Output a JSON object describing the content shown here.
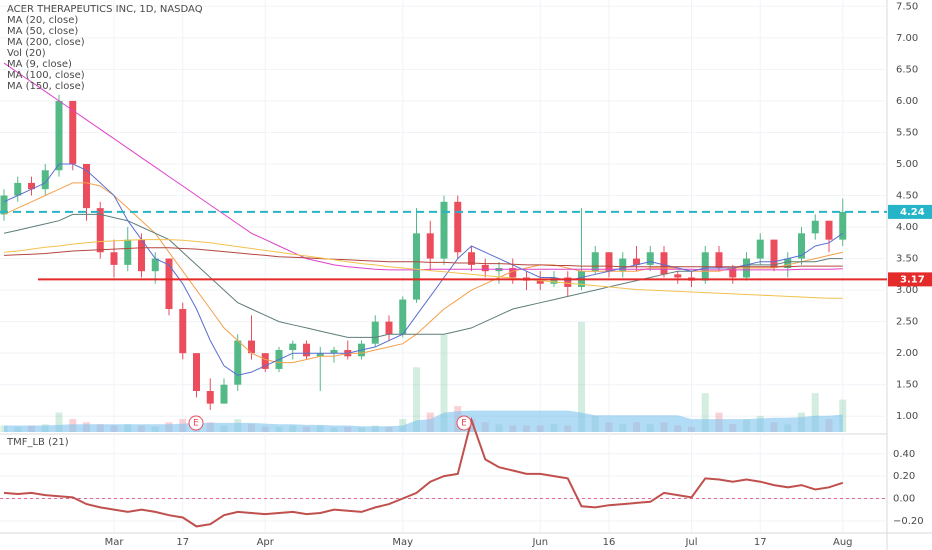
{
  "chart_data": [
    {
      "type": "candlestick",
      "title": "ACER THERAPEUTICS INC, 1D, NASDAQ",
      "categories": [
        null,
        null,
        null,
        null,
        null,
        null,
        null,
        null,
        "Mar",
        null,
        null,
        null,
        null,
        "17",
        null,
        null,
        null,
        null,
        null,
        "Apr",
        null,
        null,
        null,
        null,
        null,
        null,
        null,
        null,
        null,
        "May",
        null,
        null,
        null,
        null,
        null,
        null,
        null,
        null,
        null,
        "Jun",
        null,
        null,
        null,
        null,
        "16",
        null,
        null,
        null,
        null,
        null,
        "Jul",
        null,
        null,
        null,
        null,
        "17",
        null,
        null,
        null,
        null,
        null,
        "Aug"
      ],
      "open": [
        4.2,
        4.5,
        4.7,
        4.6,
        4.9,
        6.0,
        5.0,
        4.3,
        3.6,
        3.4,
        3.8,
        3.3,
        3.5,
        2.7,
        2.0,
        1.4,
        1.2,
        1.5,
        2.2,
        2.0,
        1.75,
        2.05,
        2.15,
        1.95,
        2.0,
        2.05,
        1.95,
        2.15,
        2.5,
        2.3,
        2.85,
        3.9,
        3.5,
        4.4,
        3.6,
        3.4,
        3.3,
        3.35,
        3.2,
        3.15,
        3.1,
        3.2,
        3.05,
        3.3,
        3.6,
        3.3,
        3.5,
        3.4,
        3.6,
        3.25,
        3.2,
        3.15,
        3.6,
        3.35,
        3.2,
        3.5,
        3.8,
        3.35,
        3.5,
        3.9,
        4.1,
        3.8
      ],
      "high": [
        4.6,
        4.8,
        4.8,
        5.0,
        6.1,
        6.0,
        5.0,
        4.4,
        3.8,
        4.0,
        3.9,
        3.6,
        3.5,
        2.8,
        2.0,
        1.6,
        1.6,
        2.3,
        2.6,
        2.0,
        2.1,
        2.2,
        2.2,
        2.1,
        2.1,
        2.2,
        2.2,
        2.6,
        2.6,
        2.9,
        4.3,
        4.1,
        4.5,
        4.5,
        3.7,
        3.5,
        3.45,
        3.5,
        3.3,
        3.3,
        3.3,
        3.3,
        4.3,
        3.7,
        3.6,
        3.6,
        3.7,
        3.7,
        3.7,
        3.3,
        3.3,
        3.7,
        3.7,
        3.4,
        3.6,
        3.9,
        3.8,
        3.6,
        4.0,
        4.2,
        4.1,
        4.45
      ],
      "low": [
        4.1,
        4.4,
        4.5,
        4.5,
        4.8,
        4.9,
        4.1,
        3.5,
        3.2,
        3.3,
        3.2,
        3.1,
        2.6,
        1.9,
        1.3,
        1.1,
        1.2,
        1.4,
        1.9,
        1.7,
        1.7,
        1.9,
        1.9,
        1.4,
        1.85,
        1.9,
        1.9,
        2.1,
        2.2,
        2.25,
        2.8,
        3.3,
        3.4,
        3.5,
        3.3,
        3.2,
        3.1,
        3.1,
        3.0,
        3.0,
        3.05,
        2.9,
        3.0,
        3.25,
        3.2,
        3.2,
        3.3,
        3.3,
        3.2,
        3.1,
        3.05,
        3.1,
        3.3,
        3.1,
        3.15,
        3.4,
        3.3,
        3.2,
        3.4,
        3.8,
        3.6,
        3.7
      ],
      "close": [
        4.5,
        4.7,
        4.6,
        4.9,
        6.0,
        5.0,
        4.3,
        3.6,
        3.4,
        3.8,
        3.3,
        3.5,
        2.7,
        2.0,
        1.4,
        1.2,
        1.5,
        2.2,
        2.0,
        1.75,
        2.05,
        2.15,
        1.95,
        2.0,
        2.05,
        1.95,
        2.15,
        2.5,
        2.3,
        2.85,
        3.9,
        3.5,
        4.4,
        3.6,
        3.4,
        3.3,
        3.35,
        3.2,
        3.15,
        3.1,
        3.2,
        3.05,
        3.3,
        3.6,
        3.3,
        3.5,
        3.4,
        3.6,
        3.25,
        3.2,
        3.15,
        3.6,
        3.35,
        3.2,
        3.5,
        3.8,
        3.35,
        3.5,
        3.9,
        4.1,
        3.8,
        4.24
      ],
      "up_color": "#53b987",
      "down_color": "#eb4d5c",
      "ylim": [
        0.75,
        7.6
      ],
      "yticks": [
        {
          "value": 1,
          "label": "1.00"
        },
        {
          "value": 1.5,
          "label": "1.50"
        },
        {
          "value": 2,
          "label": "2.00"
        },
        {
          "value": 2.5,
          "label": "2.50"
        },
        {
          "value": 3,
          "label": "3.00"
        },
        {
          "value": 3.5,
          "label": "3.50"
        },
        {
          "value": 4,
          "label": "4.00"
        },
        {
          "value": 4.5,
          "label": "4.50"
        },
        {
          "value": 5,
          "label": "5.00"
        },
        {
          "value": 5.5,
          "label": "5.50"
        },
        {
          "value": 6,
          "label": "6.00"
        },
        {
          "value": 6.5,
          "label": "6.50"
        },
        {
          "value": 7,
          "label": "7.00"
        },
        {
          "value": 7.5,
          "label": "7.50"
        }
      ],
      "grid": true,
      "earnings": [
        "E",
        "E"
      ],
      "hlines": [
        {
          "value": 4.24,
          "color": "#26b5c8",
          "style": "dashed"
        },
        {
          "value": 3.17,
          "color": "#e52a2a",
          "style": "solid"
        }
      ],
      "series": [
        {
          "name": "MA (20, close)",
          "color": "#f5a04a",
          "values": [
            4.2,
            4.3,
            4.4,
            4.5,
            4.6,
            4.7,
            4.7,
            4.65,
            4.5,
            4.3,
            4.1,
            3.9,
            3.6,
            3.3,
            3.0,
            2.7,
            2.4,
            2.2,
            2.0,
            1.9,
            1.85,
            1.85,
            1.9,
            1.95,
            1.95,
            2.0,
            2.0,
            2.05,
            2.1,
            2.15,
            2.3,
            2.5,
            2.7,
            2.85,
            3.0,
            3.1,
            3.2,
            3.3,
            3.35,
            3.4,
            3.4,
            3.35,
            3.3,
            3.3,
            3.3,
            3.3,
            3.3,
            3.35,
            3.35,
            3.35,
            3.3,
            3.3,
            3.3,
            3.35,
            3.35,
            3.35,
            3.35,
            3.4,
            3.45,
            3.5,
            3.55,
            3.6
          ]
        },
        {
          "name": "MA (50, close)",
          "color": "#5f7d7a",
          "values": [
            3.9,
            3.95,
            4.0,
            4.05,
            4.1,
            4.2,
            4.2,
            4.2,
            4.15,
            4.1,
            4.0,
            3.9,
            3.8,
            3.6,
            3.4,
            3.2,
            3.0,
            2.8,
            2.7,
            2.6,
            2.5,
            2.45,
            2.4,
            2.35,
            2.3,
            2.25,
            2.25,
            2.25,
            2.3,
            2.3,
            2.3,
            2.3,
            2.3,
            2.35,
            2.4,
            2.5,
            2.6,
            2.7,
            2.75,
            2.8,
            2.85,
            2.9,
            2.95,
            3.0,
            3.05,
            3.1,
            3.15,
            3.2,
            3.25,
            3.3,
            3.3,
            3.35,
            3.35,
            3.35,
            3.4,
            3.4,
            3.4,
            3.45,
            3.45,
            3.45,
            3.5,
            3.5
          ]
        },
        {
          "name": "MA (200, close)",
          "color": "#e040c8",
          "values": [
            6.6,
            6.45,
            6.3,
            6.15,
            6.0,
            5.85,
            5.7,
            5.55,
            5.4,
            5.25,
            5.1,
            4.95,
            4.8,
            4.65,
            4.5,
            4.35,
            4.2,
            4.05,
            3.9,
            3.8,
            3.7,
            3.6,
            3.5,
            3.45,
            3.4,
            3.37,
            3.35,
            3.33,
            3.32,
            3.32,
            3.32,
            3.33,
            3.33,
            3.33,
            3.33,
            3.33,
            3.33,
            3.33,
            3.33,
            3.33,
            3.33,
            3.33,
            3.33,
            3.33,
            3.33,
            3.33,
            3.33,
            3.33,
            3.33,
            3.33,
            3.33,
            3.32,
            3.32,
            3.32,
            3.32,
            3.32,
            3.32,
            3.32,
            3.33,
            3.33,
            3.33,
            3.34
          ]
        },
        {
          "name": "Vol (20)",
          "kind": "volume",
          "color": "#7ec3ee",
          "values": [
            0.1,
            0.08,
            0.1,
            0.12,
            0.3,
            0.2,
            0.15,
            0.12,
            0.1,
            0.12,
            0.1,
            0.08,
            0.15,
            0.2,
            0.25,
            0.15,
            0.1,
            0.2,
            0.12,
            0.08,
            0.08,
            0.1,
            0.08,
            0.1,
            0.07,
            0.08,
            0.07,
            0.1,
            0.08,
            0.2,
            1.0,
            0.3,
            1.5,
            0.4,
            0.2,
            0.15,
            0.12,
            0.1,
            0.1,
            0.1,
            0.12,
            0.1,
            1.7,
            0.25,
            0.15,
            0.12,
            0.15,
            0.12,
            0.15,
            0.1,
            0.08,
            0.6,
            0.3,
            0.12,
            0.2,
            0.25,
            0.15,
            0.12,
            0.3,
            0.6,
            0.2,
            0.5
          ],
          "ma_values": [
            0.1,
            0.1,
            0.1,
            0.1,
            0.11,
            0.12,
            0.12,
            0.12,
            0.12,
            0.12,
            0.12,
            0.12,
            0.12,
            0.13,
            0.14,
            0.14,
            0.14,
            0.14,
            0.14,
            0.13,
            0.12,
            0.12,
            0.11,
            0.11,
            0.1,
            0.1,
            0.09,
            0.09,
            0.09,
            0.1,
            0.18,
            0.2,
            0.3,
            0.32,
            0.33,
            0.33,
            0.33,
            0.33,
            0.33,
            0.33,
            0.33,
            0.33,
            0.3,
            0.26,
            0.26,
            0.26,
            0.26,
            0.26,
            0.26,
            0.26,
            0.2,
            0.2,
            0.2,
            0.2,
            0.2,
            0.21,
            0.22,
            0.22,
            0.23,
            0.25,
            0.25,
            0.27
          ]
        },
        {
          "name": "MA (9, close)",
          "color": "#5a6fd0",
          "values": [
            4.4,
            4.5,
            4.6,
            4.7,
            5.0,
            5.0,
            4.9,
            4.7,
            4.5,
            4.1,
            3.8,
            3.5,
            3.4,
            3.1,
            2.7,
            2.2,
            1.8,
            1.65,
            1.7,
            1.8,
            1.9,
            2.0,
            2.0,
            2.0,
            2.0,
            2.0,
            2.05,
            2.1,
            2.2,
            2.3,
            2.6,
            2.9,
            3.2,
            3.5,
            3.7,
            3.6,
            3.5,
            3.4,
            3.3,
            3.2,
            3.2,
            3.15,
            3.2,
            3.25,
            3.3,
            3.35,
            3.4,
            3.45,
            3.4,
            3.35,
            3.3,
            3.35,
            3.35,
            3.35,
            3.4,
            3.45,
            3.45,
            3.5,
            3.55,
            3.7,
            3.75,
            3.9
          ]
        },
        {
          "name": "MA (100, close)",
          "color": "#b5473e",
          "values": [
            3.55,
            3.56,
            3.57,
            3.58,
            3.6,
            3.62,
            3.63,
            3.64,
            3.65,
            3.66,
            3.67,
            3.67,
            3.67,
            3.66,
            3.65,
            3.63,
            3.61,
            3.59,
            3.57,
            3.55,
            3.53,
            3.52,
            3.51,
            3.5,
            3.49,
            3.48,
            3.47,
            3.46,
            3.45,
            3.45,
            3.45,
            3.44,
            3.44,
            3.43,
            3.43,
            3.42,
            3.42,
            3.41,
            3.4,
            3.4,
            3.39,
            3.39,
            3.38,
            3.38,
            3.38,
            3.37,
            3.37,
            3.37,
            3.37,
            3.37,
            3.37,
            3.37,
            3.37,
            3.37,
            3.37,
            3.37,
            3.37,
            3.37,
            3.38,
            3.38,
            3.38,
            3.38
          ]
        },
        {
          "name": "MA (150, close)",
          "color": "#f2c14e",
          "values": [
            3.6,
            3.62,
            3.65,
            3.68,
            3.7,
            3.73,
            3.75,
            3.77,
            3.78,
            3.79,
            3.8,
            3.8,
            3.8,
            3.79,
            3.77,
            3.75,
            3.72,
            3.69,
            3.66,
            3.63,
            3.6,
            3.57,
            3.54,
            3.51,
            3.48,
            3.45,
            3.42,
            3.4,
            3.37,
            3.35,
            3.33,
            3.31,
            3.29,
            3.27,
            3.25,
            3.23,
            3.21,
            3.19,
            3.17,
            3.15,
            3.13,
            3.11,
            3.09,
            3.07,
            3.05,
            3.03,
            3.01,
            3.0,
            2.99,
            2.98,
            2.97,
            2.96,
            2.95,
            2.94,
            2.93,
            2.92,
            2.91,
            2.9,
            2.89,
            2.88,
            2.87,
            2.87
          ]
        }
      ]
    },
    {
      "type": "line",
      "title": "TMF_LB (21)",
      "color": "#c0504d",
      "values": [
        0.05,
        0.04,
        0.05,
        0.03,
        0.02,
        0.01,
        -0.05,
        -0.08,
        -0.1,
        -0.12,
        -0.1,
        -0.12,
        -0.15,
        -0.17,
        -0.25,
        -0.23,
        -0.15,
        -0.12,
        -0.13,
        -0.14,
        -0.13,
        -0.12,
        -0.14,
        -0.13,
        -0.1,
        -0.11,
        -0.12,
        -0.08,
        -0.05,
        0.0,
        0.05,
        0.15,
        0.2,
        0.22,
        0.7,
        0.35,
        0.28,
        0.25,
        0.22,
        0.22,
        0.2,
        0.18,
        -0.07,
        -0.08,
        -0.06,
        -0.05,
        -0.04,
        -0.03,
        0.05,
        0.03,
        0.01,
        0.18,
        0.17,
        0.15,
        0.17,
        0.15,
        0.12,
        0.1,
        0.12,
        0.08,
        0.1,
        0.14
      ],
      "ylim": [
        -0.3,
        0.55
      ],
      "yticks": [
        {
          "value": -0.2,
          "label": "−0.20"
        },
        {
          "value": 0,
          "label": "0.00"
        },
        {
          "value": 0.2,
          "label": "0.20"
        },
        {
          "value": 0.4,
          "label": "0.40"
        }
      ],
      "zero_color": "#e0669a"
    }
  ]
}
